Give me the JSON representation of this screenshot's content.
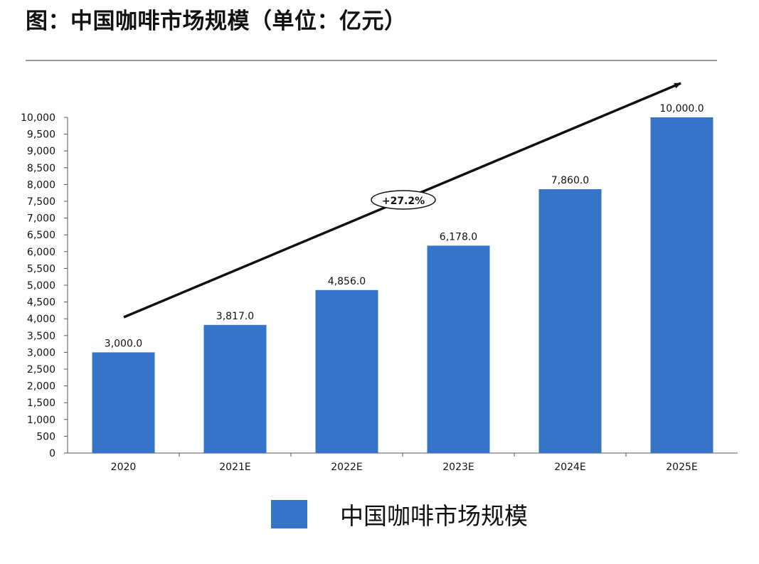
{
  "header": {
    "title": "图：中国咖啡市场规模（单位：亿元）"
  },
  "chart_data": {
    "type": "bar",
    "title": "图：中国咖啡市场规模（单位：亿元）",
    "categories": [
      "2020",
      "2021E",
      "2022E",
      "2023E",
      "2024E",
      "2025E"
    ],
    "series": [
      {
        "name": "中国咖啡市场规模",
        "values": [
          3000.0,
          3817.0,
          4856.0,
          6178.0,
          7860.0,
          10000.0
        ],
        "labels": [
          "3,000.0",
          "3,817.0",
          "4,856.0",
          "6,178.0",
          "7,860.0",
          "10,000.0"
        ],
        "color": "#3674c9"
      }
    ],
    "ylim": [
      0,
      10000
    ],
    "yticks": [
      0,
      500,
      1000,
      1500,
      2000,
      2500,
      3000,
      3500,
      4000,
      4500,
      5000,
      5500,
      6000,
      6500,
      7000,
      7500,
      8000,
      8500,
      9000,
      9500,
      10000
    ],
    "ytick_labels": [
      "0",
      "500",
      "1,000",
      "1,500",
      "2,000",
      "2,500",
      "3,000",
      "3,500",
      "4,000",
      "4,500",
      "5,000",
      "5,500",
      "6,000",
      "6,500",
      "7,000",
      "7,500",
      "8,000",
      "8,500",
      "9,000",
      "9,500",
      "10,000"
    ],
    "xlabel": "",
    "ylabel": "",
    "grid": false,
    "legend_position": "bottom-center",
    "annotation": {
      "text": "+27.2%",
      "type": "trend-arrow"
    }
  }
}
